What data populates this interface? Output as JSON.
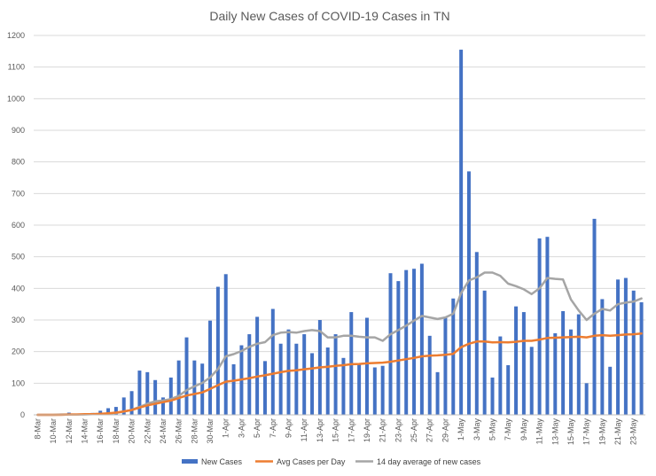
{
  "chart_data": {
    "type": "bar",
    "title": "Daily New Cases of COVID-19 Cases in TN",
    "xlabel": "",
    "ylabel": "",
    "ylim": [
      0,
      1200
    ],
    "yticks": [
      0,
      100,
      200,
      300,
      400,
      500,
      600,
      700,
      800,
      900,
      1000,
      1100,
      1200
    ],
    "grid": true,
    "legend_position": "bottom",
    "colors": {
      "bars": "#4472c4",
      "avg": "#ed7d31",
      "ma14": "#a5a5a5"
    },
    "categories": [
      "8-Mar",
      "9-Mar",
      "10-Mar",
      "11-Mar",
      "12-Mar",
      "13-Mar",
      "14-Mar",
      "15-Mar",
      "16-Mar",
      "17-Mar",
      "18-Mar",
      "19-Mar",
      "20-Mar",
      "21-Mar",
      "22-Mar",
      "23-Mar",
      "24-Mar",
      "25-Mar",
      "26-Mar",
      "27-Mar",
      "28-Mar",
      "29-Mar",
      "30-Mar",
      "31-Mar",
      "1-Apr",
      "2-Apr",
      "3-Apr",
      "4-Apr",
      "5-Apr",
      "6-Apr",
      "7-Apr",
      "8-Apr",
      "9-Apr",
      "10-Apr",
      "11-Apr",
      "12-Apr",
      "13-Apr",
      "14-Apr",
      "15-Apr",
      "16-Apr",
      "17-Apr",
      "18-Apr",
      "19-Apr",
      "20-Apr",
      "21-Apr",
      "22-Apr",
      "23-Apr",
      "24-Apr",
      "25-Apr",
      "26-Apr",
      "27-Apr",
      "28-Apr",
      "29-Apr",
      "30-Apr",
      "1-May",
      "2-May",
      "3-May",
      "4-May",
      "5-May",
      "6-May",
      "7-May",
      "8-May",
      "9-May",
      "10-May",
      "11-May",
      "12-May",
      "13-May",
      "14-May",
      "15-May",
      "16-May",
      "17-May",
      "18-May",
      "19-May",
      "20-May",
      "21-May",
      "22-May",
      "23-May",
      "24-May"
    ],
    "tick_labels": [
      "8-Mar",
      "10-Mar",
      "12-Mar",
      "14-Mar",
      "16-Mar",
      "18-Mar",
      "20-Mar",
      "22-Mar",
      "24-Mar",
      "26-Mar",
      "28-Mar",
      "30-Mar",
      "1-Apr",
      "3-Apr",
      "5-Apr",
      "7-Apr",
      "9-Apr",
      "11-Apr",
      "13-Apr",
      "15-Apr",
      "17-Apr",
      "19-Apr",
      "21-Apr",
      "23-Apr",
      "25-Apr",
      "27-Apr",
      "29-Apr",
      "1-May",
      "3-May",
      "5-May",
      "7-May",
      "9-May",
      "11-May",
      "13-May",
      "15-May",
      "17-May",
      "19-May",
      "21-May",
      "23-May"
    ],
    "series": [
      {
        "name": "New Cases",
        "kind": "bar",
        "values": [
          0,
          0,
          0,
          1,
          7,
          4,
          4,
          6,
          13,
          21,
          25,
          55,
          75,
          140,
          135,
          110,
          55,
          118,
          172,
          245,
          172,
          162,
          298,
          405,
          445,
          160,
          220,
          255,
          310,
          170,
          335,
          225,
          270,
          225,
          255,
          195,
          300,
          213,
          255,
          180,
          325,
          160,
          307,
          150,
          155,
          448,
          423,
          458,
          462,
          478,
          250,
          135,
          310,
          368,
          1155,
          770,
          515,
          393,
          118,
          248,
          157,
          343,
          325,
          215,
          558,
          563,
          258,
          328,
          270,
          318,
          100,
          620,
          366,
          152,
          428,
          433,
          393,
          356
        ]
      },
      {
        "name": "Avg Cases per Day",
        "kind": "line",
        "values": [
          0,
          0,
          0,
          0,
          1,
          1,
          2,
          2,
          3,
          5,
          7,
          11,
          15,
          23,
          30,
          35,
          40,
          45,
          53,
          61,
          66,
          71,
          82,
          94,
          105,
          108,
          112,
          116,
          121,
          125,
          130,
          135,
          139,
          141,
          144,
          147,
          150,
          152,
          155,
          157,
          160,
          161,
          163,
          164,
          165,
          168,
          172,
          176,
          180,
          185,
          187,
          188,
          190,
          193,
          214,
          225,
          232,
          232,
          229,
          230,
          229,
          231,
          234,
          234,
          238,
          243,
          244,
          245,
          246,
          247,
          245,
          250,
          252,
          250,
          252,
          254,
          255,
          257
        ]
      },
      {
        "name": "14 day average of new cases",
        "kind": "line",
        "values": [
          0,
          0,
          0,
          1,
          1,
          1,
          1,
          2,
          3,
          4,
          6,
          10,
          16,
          25,
          35,
          43,
          45,
          50,
          60,
          78,
          90,
          101,
          118,
          145,
          185,
          192,
          202,
          215,
          225,
          230,
          252,
          260,
          262,
          260,
          265,
          268,
          265,
          245,
          245,
          250,
          250,
          247,
          245,
          245,
          234,
          255,
          268,
          282,
          298,
          313,
          308,
          303,
          308,
          320,
          385,
          425,
          435,
          450,
          450,
          440,
          415,
          407,
          397,
          382,
          400,
          433,
          430,
          428,
          365,
          330,
          300,
          320,
          335,
          330,
          350,
          355,
          358,
          368
        ]
      }
    ]
  }
}
